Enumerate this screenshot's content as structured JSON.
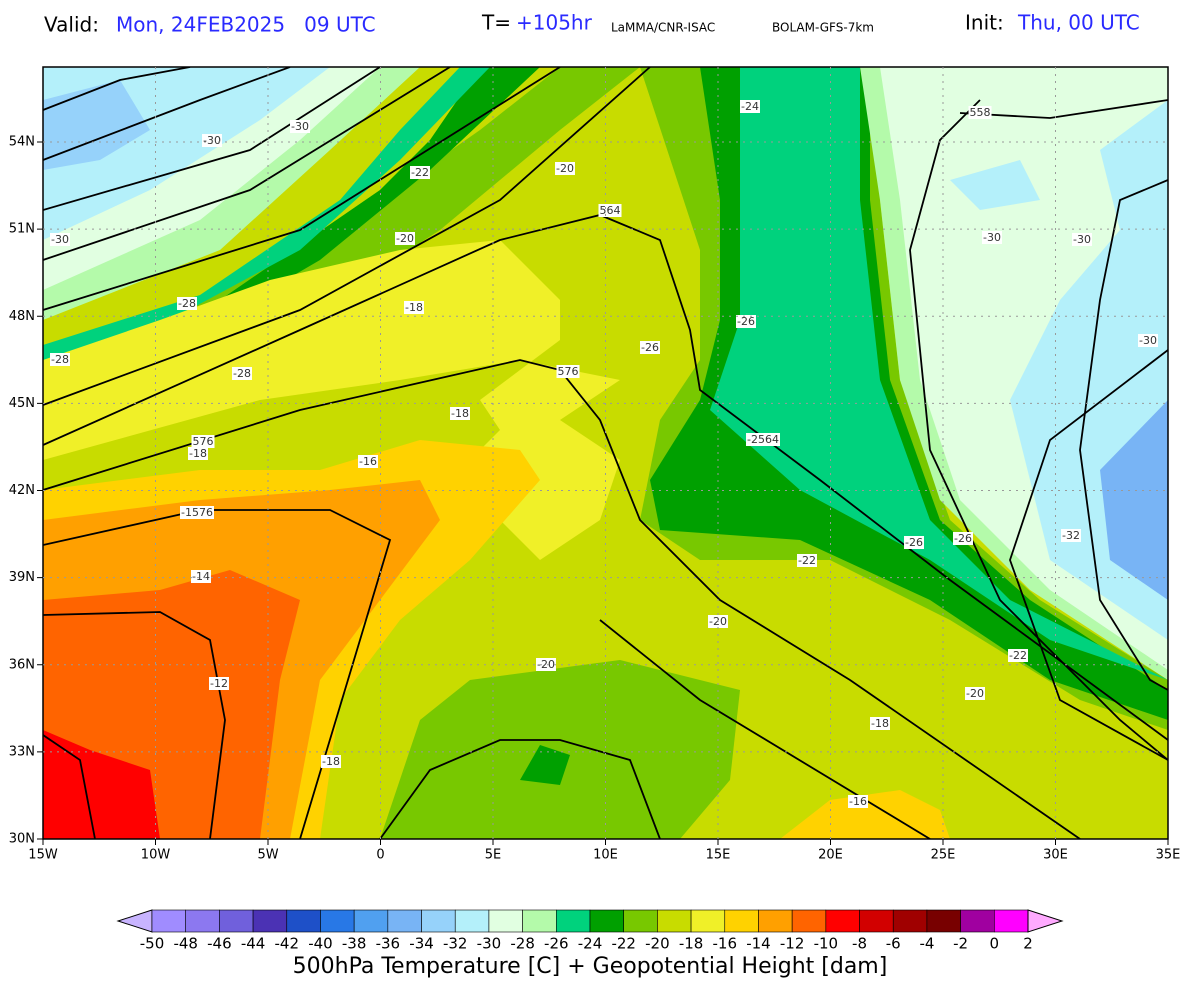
{
  "header": {
    "valid_label": "Valid:",
    "valid_time": "Mon, 24FEB2025   09 UTC",
    "lead_label": "T=",
    "lead_time": "+105hr",
    "institution": "LaMMA/CNR-ISAC",
    "model": "BOLAM-GFS-7km",
    "init_label": "Init:",
    "init_time": "Thu, 00 UTC"
  },
  "map": {
    "lat_labels": [
      "54N",
      "51N",
      "48N",
      "45N",
      "42N",
      "39N",
      "36N",
      "33N",
      "30N"
    ],
    "lon_labels": [
      "15W",
      "10W",
      "5W",
      "0",
      "5E",
      "10E",
      "15E",
      "20E",
      "25E",
      "30E",
      "35E"
    ],
    "contour_labels": [
      "-30",
      "-30",
      "-30",
      "-22",
      "-20",
      "-24",
      "558",
      "-20",
      "564",
      "-30",
      "-30",
      "-28",
      "-18",
      "-26",
      "-28",
      "-26",
      "-30",
      "576",
      "-28",
      "-18",
      "-2564",
      "576",
      "-18",
      "-16",
      "-1576",
      "-26",
      "-26",
      "-32",
      "-22",
      "-14",
      "-20",
      "-22",
      "-20",
      "-12",
      "-20",
      "-18",
      "-18",
      "-16"
    ]
  },
  "colorbar": {
    "labels": [
      -50,
      -48,
      -46,
      -44,
      -42,
      -40,
      -38,
      -36,
      -34,
      -32,
      -30,
      -28,
      -26,
      -24,
      -22,
      -20,
      -18,
      -16,
      -14,
      -12,
      -10,
      -8,
      -6,
      -4,
      -2,
      0,
      2
    ],
    "colors": [
      "#c8b4ff",
      "#a08cff",
      "#8c78f0",
      "#7060dc",
      "#4b32b4",
      "#1e50c8",
      "#2878e6",
      "#50a0f0",
      "#78b4f5",
      "#96d2fa",
      "#b4f0fa",
      "#e1ffe1",
      "#b4faaa",
      "#00d27d",
      "#00a000",
      "#78c800",
      "#c8dc00",
      "#f0f028",
      "#ffd200",
      "#ffa000",
      "#ff6400",
      "#ff0000",
      "#d20000",
      "#a00000",
      "#780000",
      "#a000a0",
      "#ff00ff",
      "#ffaaff"
    ],
    "title": "500hPa Temperature [C] + Geopotential Height [dam]"
  }
}
